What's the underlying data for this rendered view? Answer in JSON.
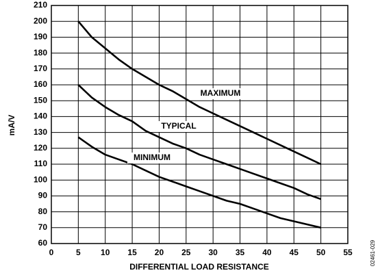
{
  "chart_data": {
    "type": "line",
    "x_label": "DIFFERENTIAL LOAD RESISTANCE",
    "y_label": "mA/V",
    "figure_code": "02461-029",
    "x": [
      5,
      7.5,
      10,
      12.5,
      15,
      17.5,
      20,
      22.5,
      25,
      27.5,
      30,
      32.5,
      35,
      37.5,
      40,
      42.5,
      45,
      47.5,
      50
    ],
    "series": [
      {
        "name": "MAXIMUM",
        "color": "#000000",
        "values": [
          200,
          190,
          183,
          176,
          170,
          165,
          160,
          156,
          151,
          146,
          142,
          138,
          134,
          130,
          126,
          122,
          118,
          114,
          110
        ]
      },
      {
        "name": "TYPICAL",
        "color": "#000000",
        "values": [
          160,
          152,
          146,
          141,
          137,
          131,
          127,
          123,
          120,
          116,
          113,
          110,
          107,
          104,
          101,
          98,
          95,
          91,
          88
        ]
      },
      {
        "name": "MINIMUM",
        "color": "#000000",
        "values": [
          127,
          121,
          116,
          113,
          110,
          106,
          102,
          99,
          96,
          93,
          90,
          87,
          85,
          82,
          79,
          76,
          74,
          72,
          70
        ]
      }
    ],
    "xlim": [
      0,
      55
    ],
    "xticks": [
      0,
      5,
      10,
      15,
      20,
      25,
      30,
      35,
      40,
      45,
      50,
      55
    ],
    "ylim": [
      60,
      210
    ],
    "yticks": [
      60,
      70,
      80,
      90,
      100,
      110,
      120,
      130,
      140,
      150,
      160,
      170,
      180,
      190,
      200,
      210
    ],
    "grid": true
  }
}
